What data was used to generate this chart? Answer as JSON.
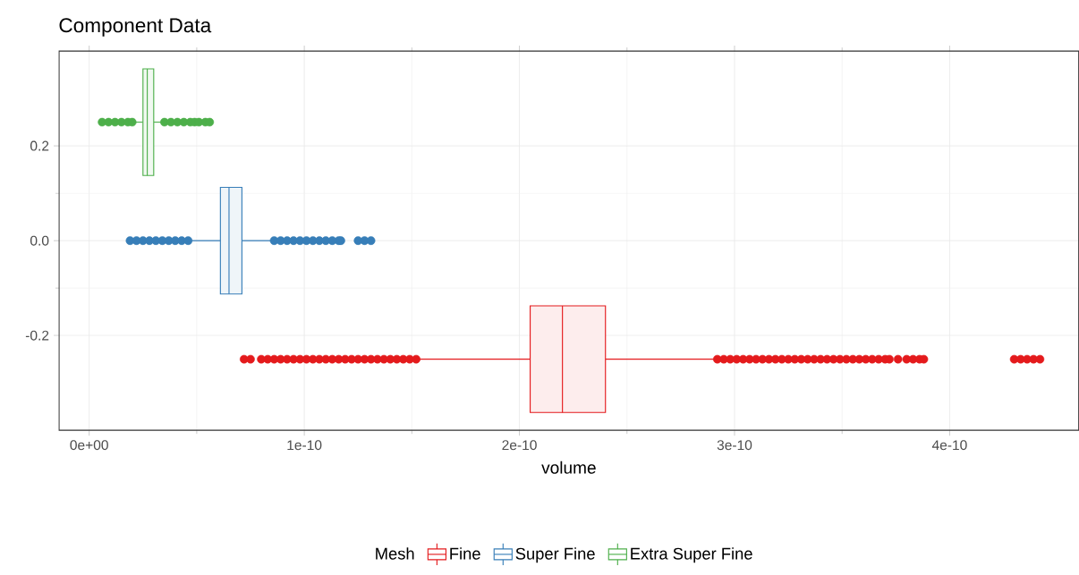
{
  "chart_data": {
    "type": "box",
    "title": "Component Data",
    "xlabel": "volume",
    "orientation": "horizontal",
    "legend_title": "Mesh",
    "legend": "bottom",
    "grid": true,
    "xlim": [
      -1.4e-11,
      4.6e-10
    ],
    "xticks": [
      {
        "value": 0,
        "label": "0e+00"
      },
      {
        "value": 1e-10,
        "label": "1e-10"
      },
      {
        "value": 2e-10,
        "label": "2e-10"
      },
      {
        "value": 3e-10,
        "label": "3e-10"
      },
      {
        "value": 4e-10,
        "label": "4e-10"
      }
    ],
    "ylim": [
      -0.4,
      0.4
    ],
    "yticks": [
      -0.2,
      {
        "value": 0,
        "label": "0.0"
      },
      0.2
    ],
    "series": [
      {
        "name": "Fine",
        "color": "#e41a1c",
        "x": [
          -0.25
        ],
        "boxes": [
          {
            "low": 1.53e-10,
            "q1": 2.05e-10,
            "median": 2.2e-10,
            "q3": 2.4e-10,
            "high": 2.91e-10,
            "outliers": [
              7.2e-11,
              7.5e-11,
              8e-11,
              8.3e-11,
              8.6e-11,
              8.9e-11,
              9.2e-11,
              9.5e-11,
              9.8e-11,
              1.01e-10,
              1.04e-10,
              1.07e-10,
              1.1e-10,
              1.13e-10,
              1.16e-10,
              1.19e-10,
              1.22e-10,
              1.25e-10,
              1.28e-10,
              1.31e-10,
              1.34e-10,
              1.37e-10,
              1.4e-10,
              1.43e-10,
              1.46e-10,
              1.49e-10,
              1.52e-10,
              2.92e-10,
              2.95e-10,
              2.98e-10,
              3.01e-10,
              3.04e-10,
              3.07e-10,
              3.1e-10,
              3.13e-10,
              3.16e-10,
              3.19e-10,
              3.22e-10,
              3.25e-10,
              3.28e-10,
              3.31e-10,
              3.34e-10,
              3.37e-10,
              3.4e-10,
              3.43e-10,
              3.46e-10,
              3.49e-10,
              3.52e-10,
              3.55e-10,
              3.58e-10,
              3.61e-10,
              3.64e-10,
              3.67e-10,
              3.7e-10,
              3.72e-10,
              3.76e-10,
              3.8e-10,
              3.83e-10,
              3.86e-10,
              3.88e-10,
              4.3e-10,
              4.33e-10,
              4.36e-10,
              4.39e-10,
              4.42e-10
            ]
          }
        ]
      },
      {
        "name": "Super Fine",
        "color": "#377eb8",
        "x": [
          0
        ],
        "boxes": [
          {
            "low": 4.7e-11,
            "q1": 6.1e-11,
            "median": 6.5e-11,
            "q3": 7.1e-11,
            "high": 8.5e-11,
            "outliers": [
              1.9e-11,
              2.2e-11,
              2.5e-11,
              2.8e-11,
              3.1e-11,
              3.4e-11,
              3.7e-11,
              4e-11,
              4.3e-11,
              4.6e-11,
              8.6e-11,
              8.9e-11,
              9.2e-11,
              9.5e-11,
              9.8e-11,
              1.01e-10,
              1.04e-10,
              1.07e-10,
              1.1e-10,
              1.13e-10,
              1.16e-10,
              1.17e-10,
              1.25e-10,
              1.28e-10,
              1.31e-10
            ]
          }
        ]
      },
      {
        "name": "Extra Super Fine",
        "color": "#4daf4a",
        "x": [
          0.25
        ],
        "boxes": [
          {
            "low": 2.1e-11,
            "q1": 2.5e-11,
            "median": 2.7e-11,
            "q3": 3e-11,
            "high": 3.4e-11,
            "outliers": [
              6e-12,
              9e-12,
              1.2e-11,
              1.5e-11,
              1.8e-11,
              2e-11,
              3.5e-11,
              3.8e-11,
              4.1e-11,
              4.4e-11,
              4.7e-11,
              4.9e-11,
              5.1e-11,
              5.4e-11,
              5.6e-11
            ]
          }
        ]
      }
    ]
  }
}
